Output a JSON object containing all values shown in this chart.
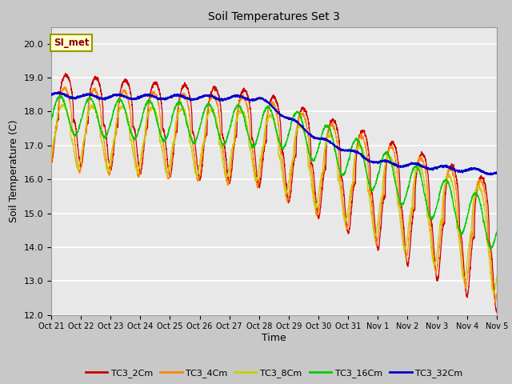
{
  "title": "Soil Temperatures Set 3",
  "xlabel": "Time",
  "ylabel": "Soil Temperature (C)",
  "ylim": [
    12.0,
    20.5
  ],
  "xlim_days": 15.0,
  "annotation": "SI_met",
  "fig_bg_color": "#c8c8c8",
  "plot_bg_color": "#e8e8e8",
  "series_colors": {
    "TC3_2Cm": "#cc0000",
    "TC3_4Cm": "#ff8800",
    "TC3_8Cm": "#cccc00",
    "TC3_16Cm": "#00cc00",
    "TC3_32Cm": "#0000cc"
  },
  "tick_labels": [
    "Oct 21",
    "Oct 22",
    "Oct 23",
    "Oct 24",
    "Oct 25",
    "Oct 26",
    "Oct 27",
    "Oct 28",
    "Oct 29",
    "Oct 30",
    "Oct 31",
    "Nov 1",
    "Nov 2",
    "Nov 3",
    "Nov 4",
    "Nov 5"
  ],
  "y_ticks": [
    12.0,
    13.0,
    14.0,
    15.0,
    16.0,
    17.0,
    18.0,
    19.0,
    20.0
  ]
}
